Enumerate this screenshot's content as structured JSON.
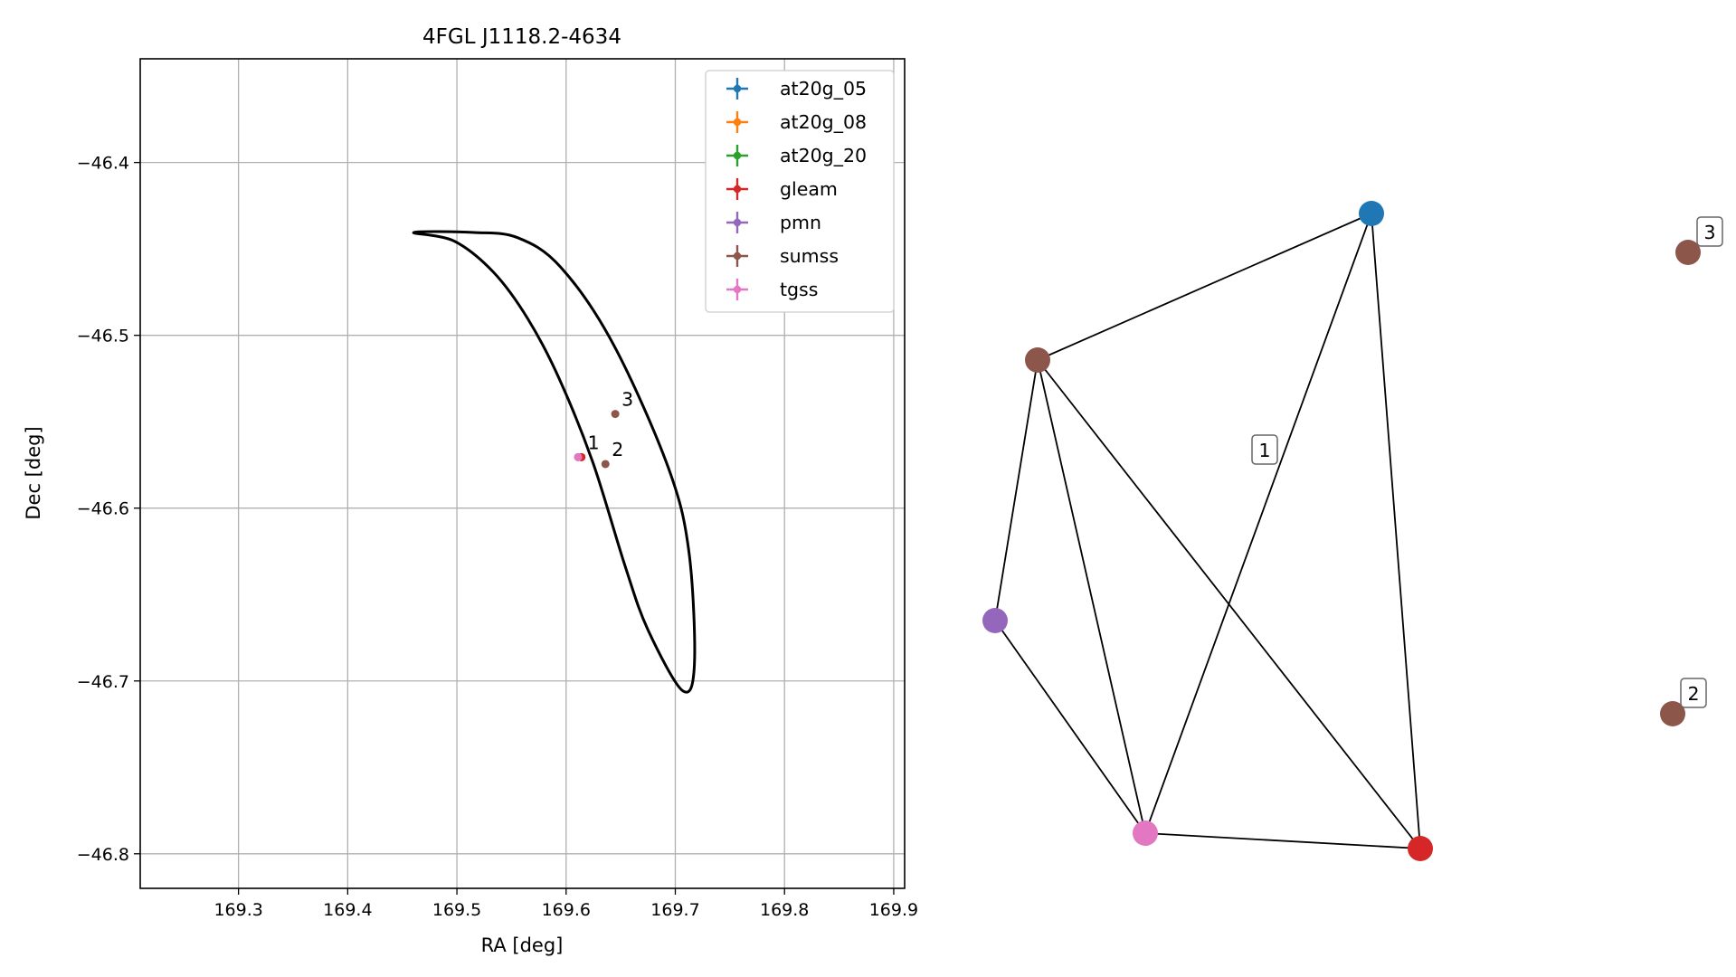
{
  "chart_data": [
    {
      "type": "scatter",
      "title": "4FGL J1118.2-4634",
      "xlabel": "RA [deg]",
      "ylabel": "Dec [deg]",
      "xlim": [
        169.21,
        169.91
      ],
      "ylim": [
        -46.82,
        -46.34
      ],
      "xticks": [
        169.3,
        169.4,
        169.5,
        169.6,
        169.7,
        169.8,
        169.9
      ],
      "xtick_labels": [
        "169.3",
        "169.4",
        "169.5",
        "169.6",
        "169.7",
        "169.8",
        "169.9"
      ],
      "yticks": [
        -46.4,
        -46.5,
        -46.6,
        -46.7,
        -46.8
      ],
      "ytick_labels": [
        "−46.4",
        "−46.5",
        "−46.6",
        "−46.7",
        "−46.8"
      ],
      "grid": true,
      "legend_position": "top-right",
      "series": [
        {
          "name": "at20g_05",
          "color": "#1f77b4",
          "points": []
        },
        {
          "name": "at20g_08",
          "color": "#ff7f0e",
          "points": []
        },
        {
          "name": "at20g_20",
          "color": "#2ca02c",
          "points": []
        },
        {
          "name": "gleam",
          "color": "#d62728",
          "points": [
            {
              "x": 169.614,
              "y": -46.5705
            }
          ]
        },
        {
          "name": "pmn",
          "color": "#9467bd",
          "points": [
            {
              "x": 169.611,
              "y": -46.5705
            }
          ]
        },
        {
          "name": "sumss",
          "color": "#8c564b",
          "points": [
            {
              "x": 169.614,
              "y": -46.5705,
              "label": "1"
            },
            {
              "x": 169.636,
              "y": -46.5745,
              "label": "2"
            },
            {
              "x": 169.645,
              "y": -46.5455,
              "label": "3"
            }
          ]
        },
        {
          "name": "tgss",
          "color": "#e377c2",
          "points": [
            {
              "x": 169.611,
              "y": -46.5705
            }
          ]
        }
      ],
      "ellipse": {
        "color": "#000000",
        "outline": [
          [
            169.4605,
            -46.4405
          ],
          [
            169.4975,
            -46.4455
          ],
          [
            169.5335,
            -46.4635
          ],
          [
            169.565,
            -46.4905
          ],
          [
            169.594,
            -46.5255
          ],
          [
            169.625,
            -46.5745
          ],
          [
            169.6545,
            -46.6345
          ],
          [
            169.675,
            -46.6705
          ],
          [
            169.7065,
            -46.7055
          ],
          [
            169.7175,
            -46.6905
          ],
          [
            169.7125,
            -46.6255
          ],
          [
            169.6935,
            -46.5765
          ],
          [
            169.6435,
            -46.5055
          ],
          [
            169.595,
            -46.4605
          ],
          [
            169.5555,
            -46.4435
          ],
          [
            169.5155,
            -46.4405
          ],
          [
            169.4605,
            -46.4405
          ]
        ]
      }
    },
    {
      "type": "network",
      "node_colors": {
        "at20g": "#1f77b4",
        "sumss": "#8c564b",
        "pmn": "#9467bd",
        "tgss": "#e377c2",
        "gleam": "#d62728"
      },
      "nodes": [
        {
          "id": "blue",
          "catalog": "at20g"
        },
        {
          "id": "brown1",
          "catalog": "sumss"
        },
        {
          "id": "purple",
          "catalog": "pmn"
        },
        {
          "id": "pink",
          "catalog": "tgss"
        },
        {
          "id": "red",
          "catalog": "gleam"
        },
        {
          "id": "brown3",
          "catalog": "sumss",
          "badge": "3"
        },
        {
          "id": "brown2",
          "catalog": "sumss",
          "badge": "2"
        }
      ],
      "edges": [
        [
          "brown1",
          "blue"
        ],
        [
          "blue",
          "pink"
        ],
        [
          "blue",
          "red"
        ],
        [
          "brown1",
          "purple"
        ],
        [
          "brown1",
          "pink"
        ],
        [
          "brown1",
          "red"
        ],
        [
          "purple",
          "pink"
        ],
        [
          "pink",
          "red"
        ]
      ],
      "component_label": "1"
    }
  ]
}
